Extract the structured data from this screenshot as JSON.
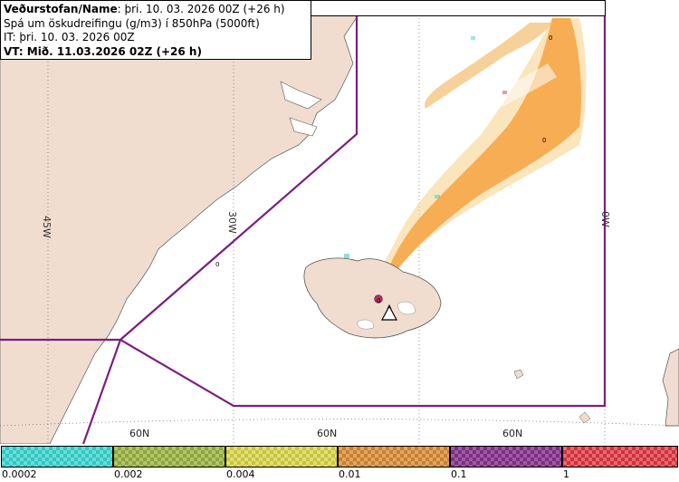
{
  "header": {
    "line1_bold": "Veðurstofan/Name",
    "line1_rest": ": þri. 10. 03. 2026 00Z (+26 h)",
    "line2": "Spá um öskudreifingu (g/m3) í 850hPa (5000ft)",
    "line3": "IT: þri. 10. 03. 2026 00Z",
    "line4": "VT: Mið. 11.03.2026 02Z (+26 h)"
  },
  "map": {
    "longitude_labels": [
      "45W",
      "30W",
      "0W"
    ],
    "latitude_labels": [
      "60N",
      "60N",
      "60N"
    ],
    "contour_labels": [
      "0",
      "0",
      "0",
      "0"
    ],
    "volcano_icon": "volcano-marker-icon",
    "colors": {
      "land": "#f0ddd0",
      "sea": "#ffffff",
      "boundary": "#7b1f7f",
      "ash_main": "#f7a94a",
      "ash_light": "#f5d08a"
    }
  },
  "legend": {
    "values": [
      "0.0002",
      "0.002",
      "0.004",
      "0.01",
      "0.1",
      "1"
    ],
    "colors": [
      "#2fc7c4",
      "#8da53a",
      "#c8c53d",
      "#c97f2f",
      "#7b2f7f",
      "#d0323a"
    ]
  }
}
